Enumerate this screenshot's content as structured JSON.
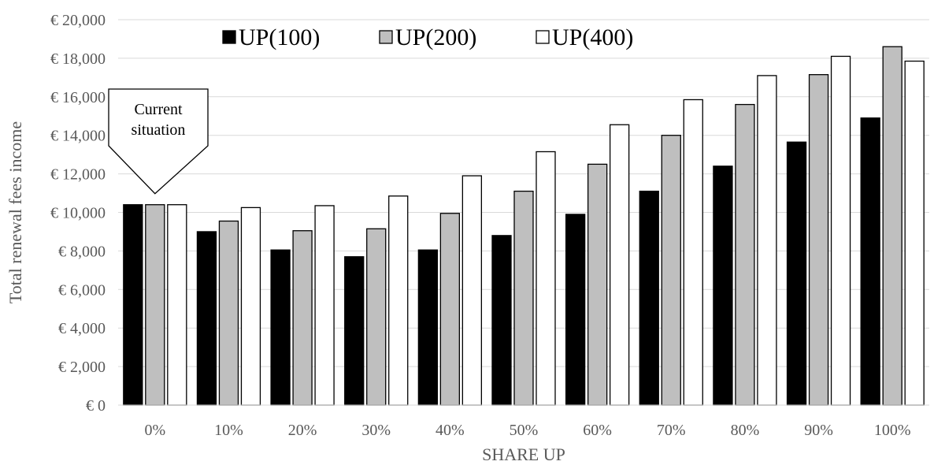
{
  "chart_data": {
    "type": "bar",
    "title": "",
    "xlabel": "SHARE UP",
    "ylabel": "Total renewal fees income",
    "ylim": [
      0,
      20000
    ],
    "yticks": [
      0,
      2000,
      4000,
      6000,
      8000,
      10000,
      12000,
      14000,
      16000,
      18000,
      20000
    ],
    "ytick_labels": [
      "€ 0",
      "€ 2,000",
      "€ 4,000",
      "€ 6,000",
      "€ 8,000",
      "€ 10,000",
      "€ 12,000",
      "€ 14,000",
      "€ 16,000",
      "€ 18,000",
      "€ 20,000"
    ],
    "categories": [
      "0%",
      "10%",
      "20%",
      "30%",
      "40%",
      "50%",
      "60%",
      "70%",
      "80%",
      "90%",
      "100%"
    ],
    "series": [
      {
        "name": "UP(100)",
        "color": "#000000",
        "values": [
          10400,
          9000,
          8050,
          7700,
          8050,
          8800,
          9900,
          11100,
          12400,
          13650,
          14900
        ]
      },
      {
        "name": "UP(200)",
        "color": "#bfbfbf",
        "values": [
          10400,
          9550,
          9050,
          9150,
          9950,
          11100,
          12500,
          14000,
          15600,
          17150,
          18600
        ]
      },
      {
        "name": "UP(400)",
        "color": "#ffffff",
        "values": [
          10400,
          10250,
          10350,
          10850,
          11900,
          13150,
          14550,
          15850,
          17100,
          18100,
          17850
        ]
      }
    ],
    "grid": true,
    "legend_position": "top-left",
    "annotation": {
      "lines": [
        "Current",
        "situation"
      ],
      "category": "0%"
    }
  }
}
